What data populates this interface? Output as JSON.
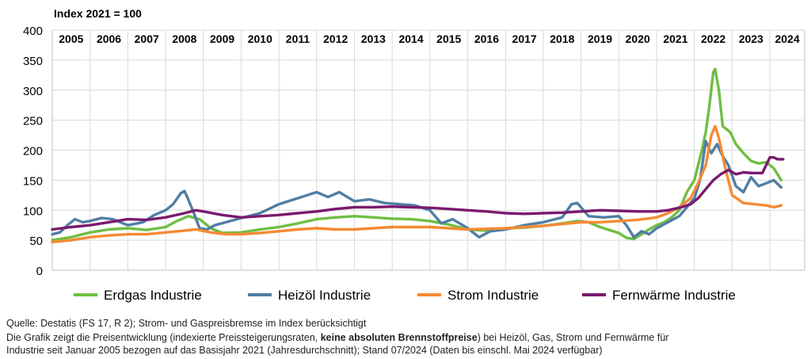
{
  "chart_data": {
    "type": "line",
    "title": "Index 2021 = 100",
    "ylim": [
      0,
      400
    ],
    "yticks": [
      0,
      50,
      100,
      150,
      200,
      250,
      300,
      350,
      400
    ],
    "xlim": [
      2005,
      2024.92
    ],
    "years": [
      "2005",
      "2006",
      "2007",
      "2008",
      "2009",
      "2010",
      "2011",
      "2012",
      "2013",
      "2014",
      "2015",
      "2016",
      "2017",
      "2018",
      "2019",
      "2020",
      "2021",
      "2022",
      "2023",
      "2024"
    ],
    "grid": true,
    "legend_position": "bottom",
    "series": [
      {
        "name": "Erdgas Industrie",
        "color": "#6fbe44",
        "x": [
          2005.0,
          2005.5,
          2006.0,
          2006.5,
          2007.0,
          2007.5,
          2008.0,
          2008.3,
          2008.6,
          2008.9,
          2009.2,
          2009.5,
          2010.0,
          2010.5,
          2011.0,
          2011.5,
          2012.0,
          2012.5,
          2013.0,
          2013.5,
          2014.0,
          2014.5,
          2015.0,
          2015.5,
          2016.0,
          2016.5,
          2017.0,
          2017.5,
          2018.0,
          2018.5,
          2018.9,
          2019.2,
          2019.5,
          2019.8,
          2020.0,
          2020.2,
          2020.4,
          2020.6,
          2020.8,
          2021.0,
          2021.2,
          2021.4,
          2021.6,
          2021.8,
          2022.0,
          2022.1,
          2022.2,
          2022.3,
          2022.4,
          2022.5,
          2022.55,
          2022.65,
          2022.75,
          2022.85,
          2022.95,
          2023.1,
          2023.3,
          2023.5,
          2023.7,
          2023.9,
          2024.1,
          2024.3
        ],
        "y": [
          50,
          55,
          63,
          68,
          70,
          67,
          72,
          82,
          90,
          85,
          70,
          62,
          63,
          68,
          72,
          78,
          85,
          88,
          90,
          88,
          86,
          85,
          82,
          76,
          68,
          66,
          70,
          71,
          74,
          78,
          82,
          80,
          72,
          66,
          62,
          54,
          52,
          60,
          68,
          75,
          80,
          88,
          100,
          130,
          150,
          175,
          200,
          230,
          275,
          330,
          335,
          300,
          240,
          235,
          230,
          210,
          195,
          182,
          178,
          180,
          170,
          150
        ]
      },
      {
        "name": "Heizöl Industrie",
        "color": "#507ea4",
        "x": [
          2005.0,
          2005.2,
          2005.4,
          2005.6,
          2005.8,
          2006.0,
          2006.3,
          2006.6,
          2007.0,
          2007.4,
          2007.7,
          2008.0,
          2008.2,
          2008.4,
          2008.5,
          2008.6,
          2008.75,
          2008.9,
          2009.1,
          2009.3,
          2009.6,
          2010.0,
          2010.5,
          2011.0,
          2011.5,
          2012.0,
          2012.3,
          2012.6,
          2013.0,
          2013.4,
          2013.8,
          2014.2,
          2014.6,
          2015.0,
          2015.3,
          2015.6,
          2016.0,
          2016.3,
          2016.6,
          2017.0,
          2017.5,
          2018.0,
          2018.5,
          2018.75,
          2018.9,
          2019.2,
          2019.6,
          2020.0,
          2020.2,
          2020.4,
          2020.6,
          2020.8,
          2021.0,
          2021.3,
          2021.6,
          2021.8,
          2022.0,
          2022.15,
          2022.3,
          2022.45,
          2022.6,
          2022.75,
          2022.9,
          2023.1,
          2023.3,
          2023.5,
          2023.7,
          2023.9,
          2024.1,
          2024.3
        ],
        "y": [
          60,
          63,
          75,
          85,
          80,
          82,
          87,
          85,
          75,
          80,
          92,
          100,
          110,
          128,
          132,
          118,
          95,
          70,
          68,
          75,
          80,
          87,
          95,
          110,
          120,
          130,
          122,
          130,
          115,
          118,
          112,
          110,
          108,
          100,
          78,
          85,
          70,
          55,
          65,
          68,
          75,
          80,
          88,
          110,
          112,
          90,
          88,
          90,
          75,
          55,
          65,
          60,
          70,
          80,
          90,
          105,
          120,
          150,
          215,
          195,
          210,
          190,
          175,
          140,
          130,
          155,
          140,
          145,
          150,
          138
        ]
      },
      {
        "name": "Strom Industrie",
        "color": "#f58a34",
        "x": [
          2005.0,
          2005.5,
          2006.0,
          2006.5,
          2007.0,
          2007.5,
          2008.0,
          2008.5,
          2008.8,
          2009.2,
          2009.6,
          2010.0,
          2010.5,
          2011.0,
          2011.5,
          2012.0,
          2012.5,
          2013.0,
          2013.5,
          2014.0,
          2015.0,
          2016.0,
          2017.0,
          2018.0,
          2019.0,
          2019.5,
          2020.0,
          2020.5,
          2021.0,
          2021.3,
          2021.6,
          2021.9,
          2022.1,
          2022.3,
          2022.45,
          2022.55,
          2022.65,
          2022.8,
          2023.0,
          2023.3,
          2023.6,
          2023.9,
          2024.1,
          2024.3
        ],
        "y": [
          47,
          50,
          55,
          58,
          60,
          60,
          63,
          66,
          68,
          63,
          60,
          60,
          62,
          65,
          68,
          70,
          68,
          68,
          70,
          72,
          72,
          68,
          70,
          74,
          80,
          80,
          82,
          84,
          88,
          95,
          105,
          120,
          145,
          175,
          225,
          240,
          220,
          175,
          125,
          112,
          110,
          108,
          105,
          108
        ]
      },
      {
        "name": "Fernwärme Industrie",
        "color": "#7a1a6e",
        "x": [
          2005.0,
          2005.5,
          2006.0,
          2006.5,
          2007.0,
          2007.5,
          2008.0,
          2008.5,
          2008.8,
          2009.0,
          2009.5,
          2010.0,
          2010.5,
          2011.0,
          2011.5,
          2012.0,
          2012.5,
          2013.0,
          2013.5,
          2014.0,
          2014.5,
          2015.0,
          2015.5,
          2016.0,
          2016.5,
          2017.0,
          2017.5,
          2018.0,
          2018.5,
          2019.0,
          2019.5,
          2020.0,
          2020.5,
          2021.0,
          2021.3,
          2021.6,
          2021.9,
          2022.1,
          2022.3,
          2022.5,
          2022.7,
          2022.9,
          2023.1,
          2023.3,
          2023.5,
          2023.8,
          2024.0,
          2024.1,
          2024.2,
          2024.35
        ],
        "y": [
          68,
          72,
          75,
          80,
          85,
          84,
          88,
          95,
          100,
          98,
          92,
          88,
          90,
          92,
          95,
          98,
          102,
          105,
          105,
          106,
          105,
          104,
          102,
          100,
          98,
          95,
          94,
          95,
          96,
          98,
          100,
          99,
          98,
          98,
          100,
          104,
          110,
          120,
          135,
          150,
          160,
          167,
          160,
          163,
          162,
          162,
          188,
          188,
          185,
          185
        ]
      }
    ]
  },
  "footer": {
    "source": "Quelle: Destatis (FS 17, R 2); Strom- und Gaspreisbremse im Index berücksichtigt",
    "note_pre": "Die Grafik zeigt die Preisentwicklung (indexierte Preissteigerungsraten, ",
    "note_bold": "keine absoluten Brennstoffpreise",
    "note_post": ") bei Heizöl, Gas, Strom und Fernwärme für",
    "note_line2": "Industrie seit Januar 2005 bezogen auf das Basisjahr 2021 (Jahresdurchschnitt); Stand 07/2024 (Daten bis einschl. Mai 2024 verfügbar)"
  }
}
